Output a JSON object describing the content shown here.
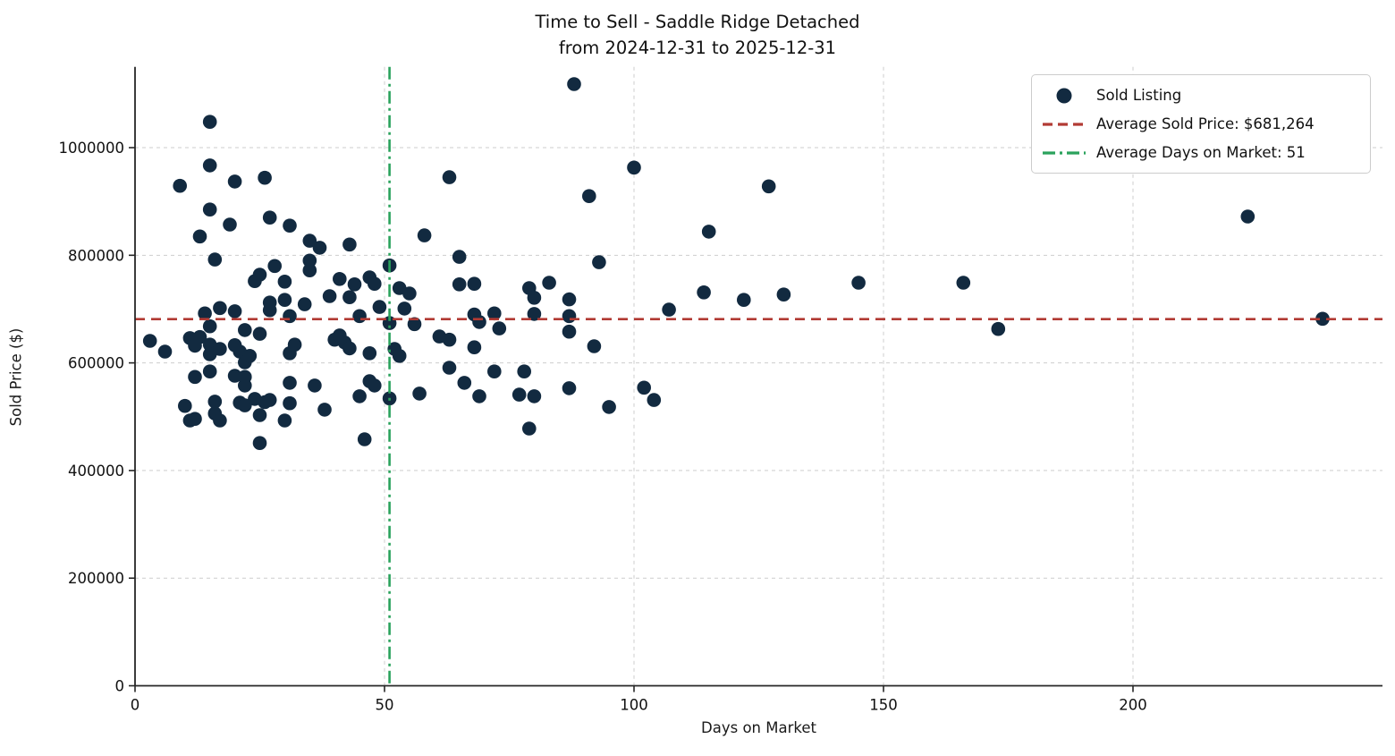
{
  "chart_data": {
    "type": "scatter",
    "title": "Time to Sell - Saddle Ridge Detached",
    "subtitle": "from 2024-12-31 to 2025-12-31",
    "xlabel": "Days on Market",
    "ylabel": "Sold Price ($)",
    "xlim": [
      0,
      250
    ],
    "ylim": [
      0,
      1150000
    ],
    "x_ticks": [
      0,
      50,
      100,
      150,
      200
    ],
    "y_ticks": [
      0,
      200000,
      400000,
      600000,
      800000,
      1000000
    ],
    "grid": true,
    "legend_position": "upper right",
    "colors": {
      "point": "#122a40",
      "avg_price_line": "#b23b34",
      "avg_days_line": "#2aa25c",
      "grid": "#cdcdcd",
      "axis": "#262626",
      "text": "#111111"
    },
    "avg_sold_price": 681264,
    "avg_days_on_market": 51,
    "reference_lines": [
      {
        "name": "average-sold-price-line",
        "orientation": "horizontal",
        "value": 681264,
        "style": "dashed",
        "color": "#b23b34"
      },
      {
        "name": "average-days-line",
        "orientation": "vertical",
        "value": 51,
        "style": "dashdot",
        "color": "#2aa25c"
      }
    ],
    "legend": [
      {
        "label": "Sold Listing",
        "marker": "dot",
        "color": "#122a40"
      },
      {
        "label": "Average Sold Price: $681,264",
        "marker": "dashed-line",
        "color": "#b23b34"
      },
      {
        "label": "Average Days on Market: 51",
        "marker": "dashdot-line",
        "color": "#2aa25c"
      }
    ],
    "series": [
      {
        "name": "Sold Listing",
        "points": [
          [
            3,
            641000
          ],
          [
            6,
            621000
          ],
          [
            9,
            929000
          ],
          [
            10,
            520000
          ],
          [
            11,
            646000
          ],
          [
            11,
            493000
          ],
          [
            12,
            632000
          ],
          [
            12,
            574000
          ],
          [
            12,
            496000
          ],
          [
            13,
            835000
          ],
          [
            13,
            648000
          ],
          [
            14,
            692000
          ],
          [
            15,
            1048000
          ],
          [
            15,
            967000
          ],
          [
            15,
            885000
          ],
          [
            15,
            668000
          ],
          [
            15,
            634000
          ],
          [
            15,
            616000
          ],
          [
            15,
            584000
          ],
          [
            16,
            792000
          ],
          [
            16,
            528000
          ],
          [
            16,
            506000
          ],
          [
            17,
            702000
          ],
          [
            17,
            626000
          ],
          [
            17,
            493000
          ],
          [
            19,
            857000
          ],
          [
            20,
            937000
          ],
          [
            20,
            696000
          ],
          [
            20,
            633000
          ],
          [
            20,
            576000
          ],
          [
            21,
            621000
          ],
          [
            21,
            526000
          ],
          [
            22,
            661000
          ],
          [
            22,
            601000
          ],
          [
            22,
            574000
          ],
          [
            22,
            558000
          ],
          [
            22,
            521000
          ],
          [
            23,
            613000
          ],
          [
            24,
            752000
          ],
          [
            24,
            533000
          ],
          [
            25,
            764000
          ],
          [
            25,
            654000
          ],
          [
            25,
            503000
          ],
          [
            25,
            451000
          ],
          [
            26,
            944000
          ],
          [
            26,
            527000
          ],
          [
            27,
            870000
          ],
          [
            27,
            712000
          ],
          [
            27,
            698000
          ],
          [
            27,
            531000
          ],
          [
            28,
            780000
          ],
          [
            30,
            751000
          ],
          [
            30,
            717000
          ],
          [
            30,
            493000
          ],
          [
            31,
            855000
          ],
          [
            31,
            687000
          ],
          [
            31,
            618000
          ],
          [
            31,
            563000
          ],
          [
            31,
            525000
          ],
          [
            32,
            634000
          ],
          [
            34,
            709000
          ],
          [
            35,
            827000
          ],
          [
            35,
            790000
          ],
          [
            35,
            772000
          ],
          [
            36,
            558000
          ],
          [
            37,
            814000
          ],
          [
            38,
            513000
          ],
          [
            39,
            724000
          ],
          [
            40,
            643000
          ],
          [
            41,
            756000
          ],
          [
            41,
            651000
          ],
          [
            42,
            638000
          ],
          [
            43,
            820000
          ],
          [
            43,
            722000
          ],
          [
            43,
            627000
          ],
          [
            44,
            746000
          ],
          [
            45,
            687000
          ],
          [
            45,
            538000
          ],
          [
            46,
            458000
          ],
          [
            47,
            759000
          ],
          [
            47,
            618000
          ],
          [
            47,
            566000
          ],
          [
            48,
            747000
          ],
          [
            48,
            558000
          ],
          [
            49,
            704000
          ],
          [
            51,
            781000
          ],
          [
            51,
            674000
          ],
          [
            51,
            534000
          ],
          [
            52,
            626000
          ],
          [
            53,
            739000
          ],
          [
            53,
            613000
          ],
          [
            54,
            701000
          ],
          [
            55,
            729000
          ],
          [
            56,
            672000
          ],
          [
            57,
            543000
          ],
          [
            58,
            837000
          ],
          [
            61,
            649000
          ],
          [
            63,
            945000
          ],
          [
            63,
            643000
          ],
          [
            63,
            591000
          ],
          [
            65,
            797000
          ],
          [
            65,
            746000
          ],
          [
            66,
            563000
          ],
          [
            68,
            747000
          ],
          [
            68,
            690000
          ],
          [
            68,
            629000
          ],
          [
            69,
            676000
          ],
          [
            69,
            538000
          ],
          [
            72,
            692000
          ],
          [
            72,
            584000
          ],
          [
            73,
            664000
          ],
          [
            77,
            541000
          ],
          [
            78,
            584000
          ],
          [
            79,
            739000
          ],
          [
            79,
            478000
          ],
          [
            80,
            721000
          ],
          [
            80,
            691000
          ],
          [
            80,
            538000
          ],
          [
            83,
            749000
          ],
          [
            87,
            718000
          ],
          [
            87,
            687000
          ],
          [
            87,
            658000
          ],
          [
            87,
            553000
          ],
          [
            88,
            1118000
          ],
          [
            91,
            910000
          ],
          [
            92,
            631000
          ],
          [
            93,
            787000
          ],
          [
            95,
            518000
          ],
          [
            100,
            963000
          ],
          [
            102,
            554000
          ],
          [
            104,
            531000
          ],
          [
            107,
            699000
          ],
          [
            114,
            731000
          ],
          [
            115,
            844000
          ],
          [
            122,
            717000
          ],
          [
            127,
            928000
          ],
          [
            130,
            727000
          ],
          [
            145,
            749000
          ],
          [
            166,
            749000
          ],
          [
            173,
            663000
          ],
          [
            223,
            872000
          ],
          [
            238,
            682000
          ]
        ]
      }
    ]
  }
}
